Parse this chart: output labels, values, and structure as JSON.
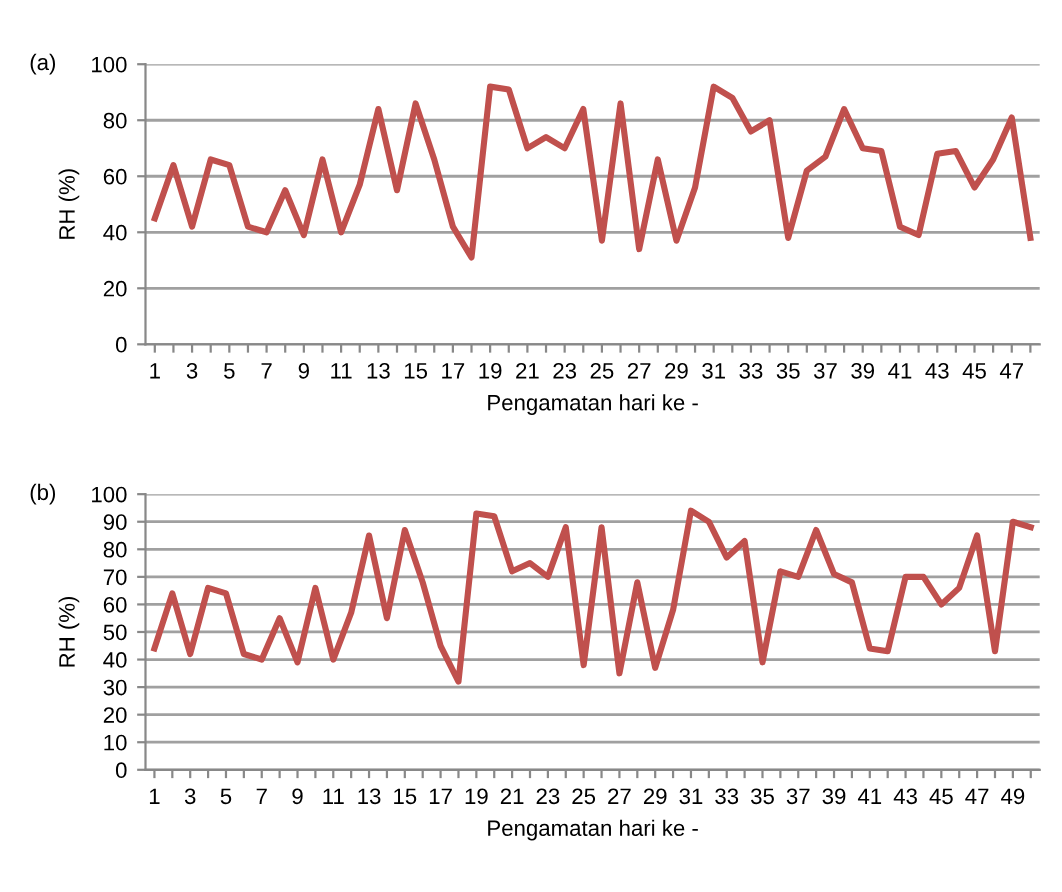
{
  "chart_data": [
    {
      "type": "line",
      "title": "(a)",
      "xlabel": "Pengamatan hari ke -",
      "ylabel": "RH (%)",
      "categories": [
        "1",
        null,
        "3",
        null,
        "5",
        null,
        "7",
        null,
        "9",
        null,
        "11",
        null,
        "13",
        null,
        "15",
        null,
        "17",
        null,
        "19",
        null,
        "21",
        null,
        "23",
        null,
        "25",
        null,
        "27",
        null,
        "29",
        null,
        "31",
        null,
        "33",
        null,
        "35",
        null,
        "37",
        null,
        "39",
        null,
        "41",
        null,
        "43",
        null,
        "45",
        null,
        "47",
        null
      ],
      "series": [
        {
          "color": "#c0504d",
          "values": [
            45,
            64,
            42,
            66,
            64,
            42,
            40,
            55,
            39,
            66,
            40,
            57,
            84,
            55,
            86,
            66,
            42,
            31,
            92,
            91,
            70,
            74,
            70,
            84,
            37,
            86,
            34,
            66,
            37,
            56,
            92,
            88,
            76,
            80,
            38,
            62,
            67,
            84,
            70,
            69,
            42,
            39,
            68,
            69,
            56,
            66,
            81,
            38
          ]
        }
      ],
      "ylim": [
        0,
        100
      ],
      "yticks": [
        0,
        20,
        40,
        60,
        80,
        100
      ],
      "grid": "y",
      "marker": "none",
      "line_style": "solid"
    },
    {
      "type": "line",
      "title": "(b)",
      "xlabel": "Pengamatan hari ke -",
      "ylabel": "RH (%)",
      "categories": [
        "1",
        null,
        "3",
        null,
        "5",
        null,
        "7",
        null,
        "9",
        null,
        "11",
        null,
        "13",
        null,
        "15",
        null,
        "17",
        null,
        "19",
        null,
        "21",
        null,
        "23",
        null,
        "25",
        null,
        "27",
        null,
        "29",
        null,
        "31",
        null,
        "33",
        null,
        "35",
        null,
        "37",
        null,
        "39",
        null,
        "41",
        null,
        "43",
        null,
        "45",
        null,
        "47",
        null,
        "49",
        null
      ],
      "series": [
        {
          "color": "#c0504d",
          "values": [
            44,
            64,
            42,
            66,
            64,
            42,
            40,
            55,
            39,
            66,
            40,
            57,
            85,
            55,
            87,
            68,
            45,
            32,
            93,
            92,
            72,
            75,
            70,
            88,
            38,
            88,
            35,
            68,
            37,
            58,
            94,
            90,
            77,
            83,
            39,
            72,
            70,
            87,
            71,
            68,
            44,
            43,
            70,
            70,
            60,
            66,
            85,
            43,
            90,
            88
          ]
        }
      ],
      "ylim": [
        0,
        100
      ],
      "yticks": [
        0,
        10,
        20,
        30,
        40,
        50,
        60,
        70,
        80,
        90,
        100
      ],
      "grid": "y",
      "marker": "none",
      "line_style": "solid"
    }
  ]
}
